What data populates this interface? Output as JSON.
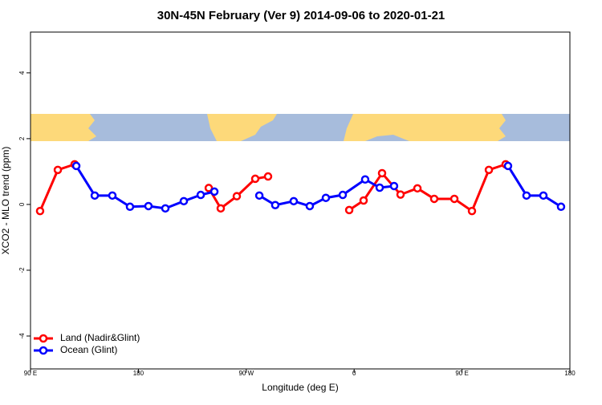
{
  "chart_data": {
    "type": "line",
    "title": "30N-45N February (Ver 9)   2014-09-06 to 2020-01-21",
    "x_label": "Longitude (deg E)",
    "y_label": "XCO2 - MLO trend (ppm)",
    "xlim": [
      90,
      540
    ],
    "xticks": [
      {
        "value": 90,
        "label": "90 E"
      },
      {
        "value": 180,
        "label": "180"
      },
      {
        "value": 270,
        "label": "90 W"
      },
      {
        "value": 360,
        "label": "0"
      },
      {
        "value": 450,
        "label": "90 E"
      },
      {
        "value": 540,
        "label": "180"
      }
    ],
    "ylim": [
      -5,
      5.24
    ],
    "yticks": [
      -4,
      -2,
      0,
      2,
      4
    ],
    "legend": "bottom-left",
    "series": [
      {
        "name": "Land (Nadir&Glint)",
        "color": "#ff0000",
        "x": [
          98,
          112.8,
          126.8,
          null,
          238.7,
          248.7,
          262.1,
          277.5,
          288.2,
          null,
          355.9,
          367.9,
          383.3,
          398.7,
          412.8,
          426.8,
          443.6,
          458.3,
          472.4,
          486.4
        ],
        "values": [
          -0.2,
          1.05,
          1.22,
          null,
          0.5,
          -0.12,
          0.25,
          0.78,
          0.85,
          null,
          -0.17,
          0.12,
          0.95,
          0.3,
          0.49,
          0.17,
          0.17,
          -0.2,
          1.05,
          1.22
        ]
      },
      {
        "name": "Ocean (Glint)",
        "color": "#0000ff",
        "x": [
          128.2,
          143.6,
          158.3,
          173,
          188.4,
          202.5,
          217.9,
          232,
          243.4,
          null,
          280.9,
          294.2,
          309.6,
          323,
          336.4,
          350.5,
          369.2,
          381.3,
          393.3,
          null,
          488.4,
          503.8,
          517.9,
          532.6
        ],
        "values": [
          1.17,
          0.27,
          0.27,
          -0.07,
          -0.05,
          -0.12,
          0.1,
          0.29,
          0.39,
          null,
          0.27,
          -0.02,
          0.1,
          -0.05,
          0.2,
          0.29,
          0.76,
          0.51,
          0.56,
          null,
          1.17,
          0.27,
          0.27,
          -0.07
        ]
      }
    ]
  }
}
